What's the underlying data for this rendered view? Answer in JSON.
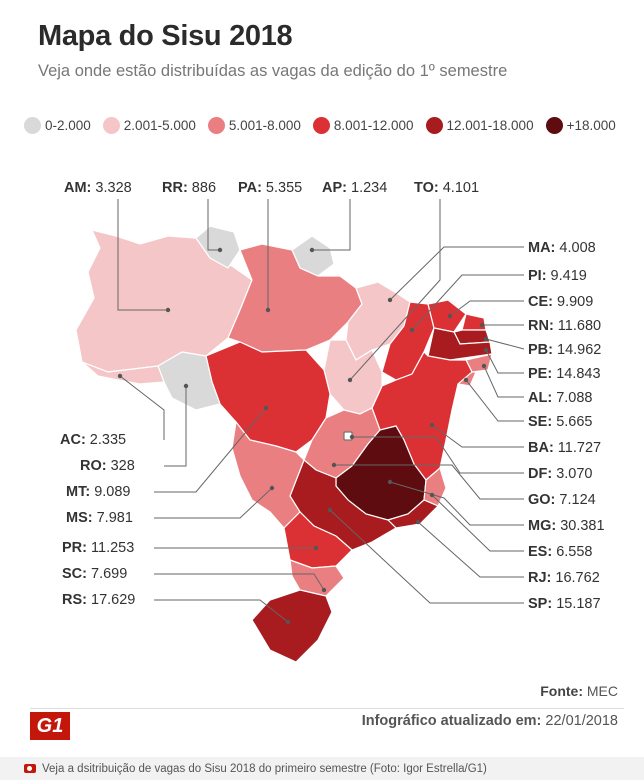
{
  "header": {
    "title": "Mapa do Sisu 2018",
    "subtitle": "Veja onde estão distribuídas as vagas da edição do 1º semestre"
  },
  "legend": [
    {
      "label": "0-2.000",
      "color": "#d9d9d9"
    },
    {
      "label": "2.001-5.000",
      "color": "#f5c6c8"
    },
    {
      "label": "5.001-8.000",
      "color": "#ea7f82"
    },
    {
      "label": "8.001-12.000",
      "color": "#dc3134"
    },
    {
      "label": "12.001-18.000",
      "color": "#a81b1e"
    },
    {
      "label": "+18.000",
      "color": "#5e0c10"
    }
  ],
  "chart_data": {
    "type": "choropleth",
    "title": "Mapa do Sisu 2018",
    "unit": "vagas",
    "states": [
      {
        "code": "AM",
        "value": "3.328"
      },
      {
        "code": "RR",
        "value": "886"
      },
      {
        "code": "PA",
        "value": "5.355"
      },
      {
        "code": "AP",
        "value": "1.234"
      },
      {
        "code": "TO",
        "value": "4.101"
      },
      {
        "code": "MA",
        "value": "4.008"
      },
      {
        "code": "PI",
        "value": "9.419"
      },
      {
        "code": "CE",
        "value": "9.909"
      },
      {
        "code": "RN",
        "value": "11.680"
      },
      {
        "code": "PB",
        "value": "14.962"
      },
      {
        "code": "PE",
        "value": "14.843"
      },
      {
        "code": "AL",
        "value": "7.088"
      },
      {
        "code": "SE",
        "value": "5.665"
      },
      {
        "code": "BA",
        "value": "11.727"
      },
      {
        "code": "DF",
        "value": "3.070"
      },
      {
        "code": "GO",
        "value": "7.124"
      },
      {
        "code": "MG",
        "value": "30.381"
      },
      {
        "code": "ES",
        "value": "6.558"
      },
      {
        "code": "RJ",
        "value": "16.762"
      },
      {
        "code": "SP",
        "value": "15.187"
      },
      {
        "code": "AC",
        "value": "2.335"
      },
      {
        "code": "RO",
        "value": "328"
      },
      {
        "code": "MT",
        "value": "9.089"
      },
      {
        "code": "MS",
        "value": "7.981"
      },
      {
        "code": "PR",
        "value": "11.253"
      },
      {
        "code": "SC",
        "value": "7.699"
      },
      {
        "code": "RS",
        "value": "17.629"
      }
    ]
  },
  "footer": {
    "source_label": "Fonte:",
    "source_value": "MEC",
    "logo_text": "G1",
    "updated_label": "Infográfico atualizado em:",
    "updated_value": "22/01/2018",
    "caption": "Veja a dsitribuição de vagas do Sisu 2018 do primeiro semestre (Foto: Igor Estrella/G1)"
  }
}
